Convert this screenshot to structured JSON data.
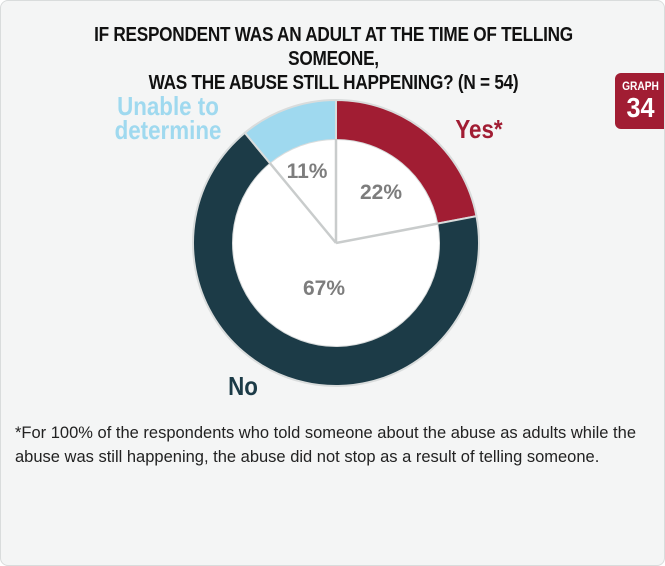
{
  "title_lines": [
    "IF RESPONDENT WAS AN ADULT AT THE TIME OF TELLING SOMEONE,",
    "WAS THE ABUSE STILL HAPPENING? (N = 54)"
  ],
  "badge": {
    "label": "GRAPH",
    "number": "34"
  },
  "chart_data": {
    "type": "pie",
    "style": "donut",
    "title": "IF RESPONDENT WAS AN ADULT AT THE TIME OF TELLING SOMEONE, WAS THE ABUSE STILL HAPPENING? (N = 54)",
    "slices": [
      {
        "label": "Yes*",
        "value": 22,
        "display": "22%",
        "color": "#a11d33"
      },
      {
        "label": "No",
        "value": 67,
        "display": "67%",
        "color": "#1c3b47"
      },
      {
        "label": "Unable to determine",
        "label_lines": [
          "Unable to",
          "determine"
        ],
        "value": 11,
        "display": "11%",
        "color": "#9fd9ef"
      }
    ]
  },
  "footnote": "*For 100% of the respondents who told someone about the abuse as adults while the abuse was still happening, the abuse did not stop as a result of telling someone."
}
